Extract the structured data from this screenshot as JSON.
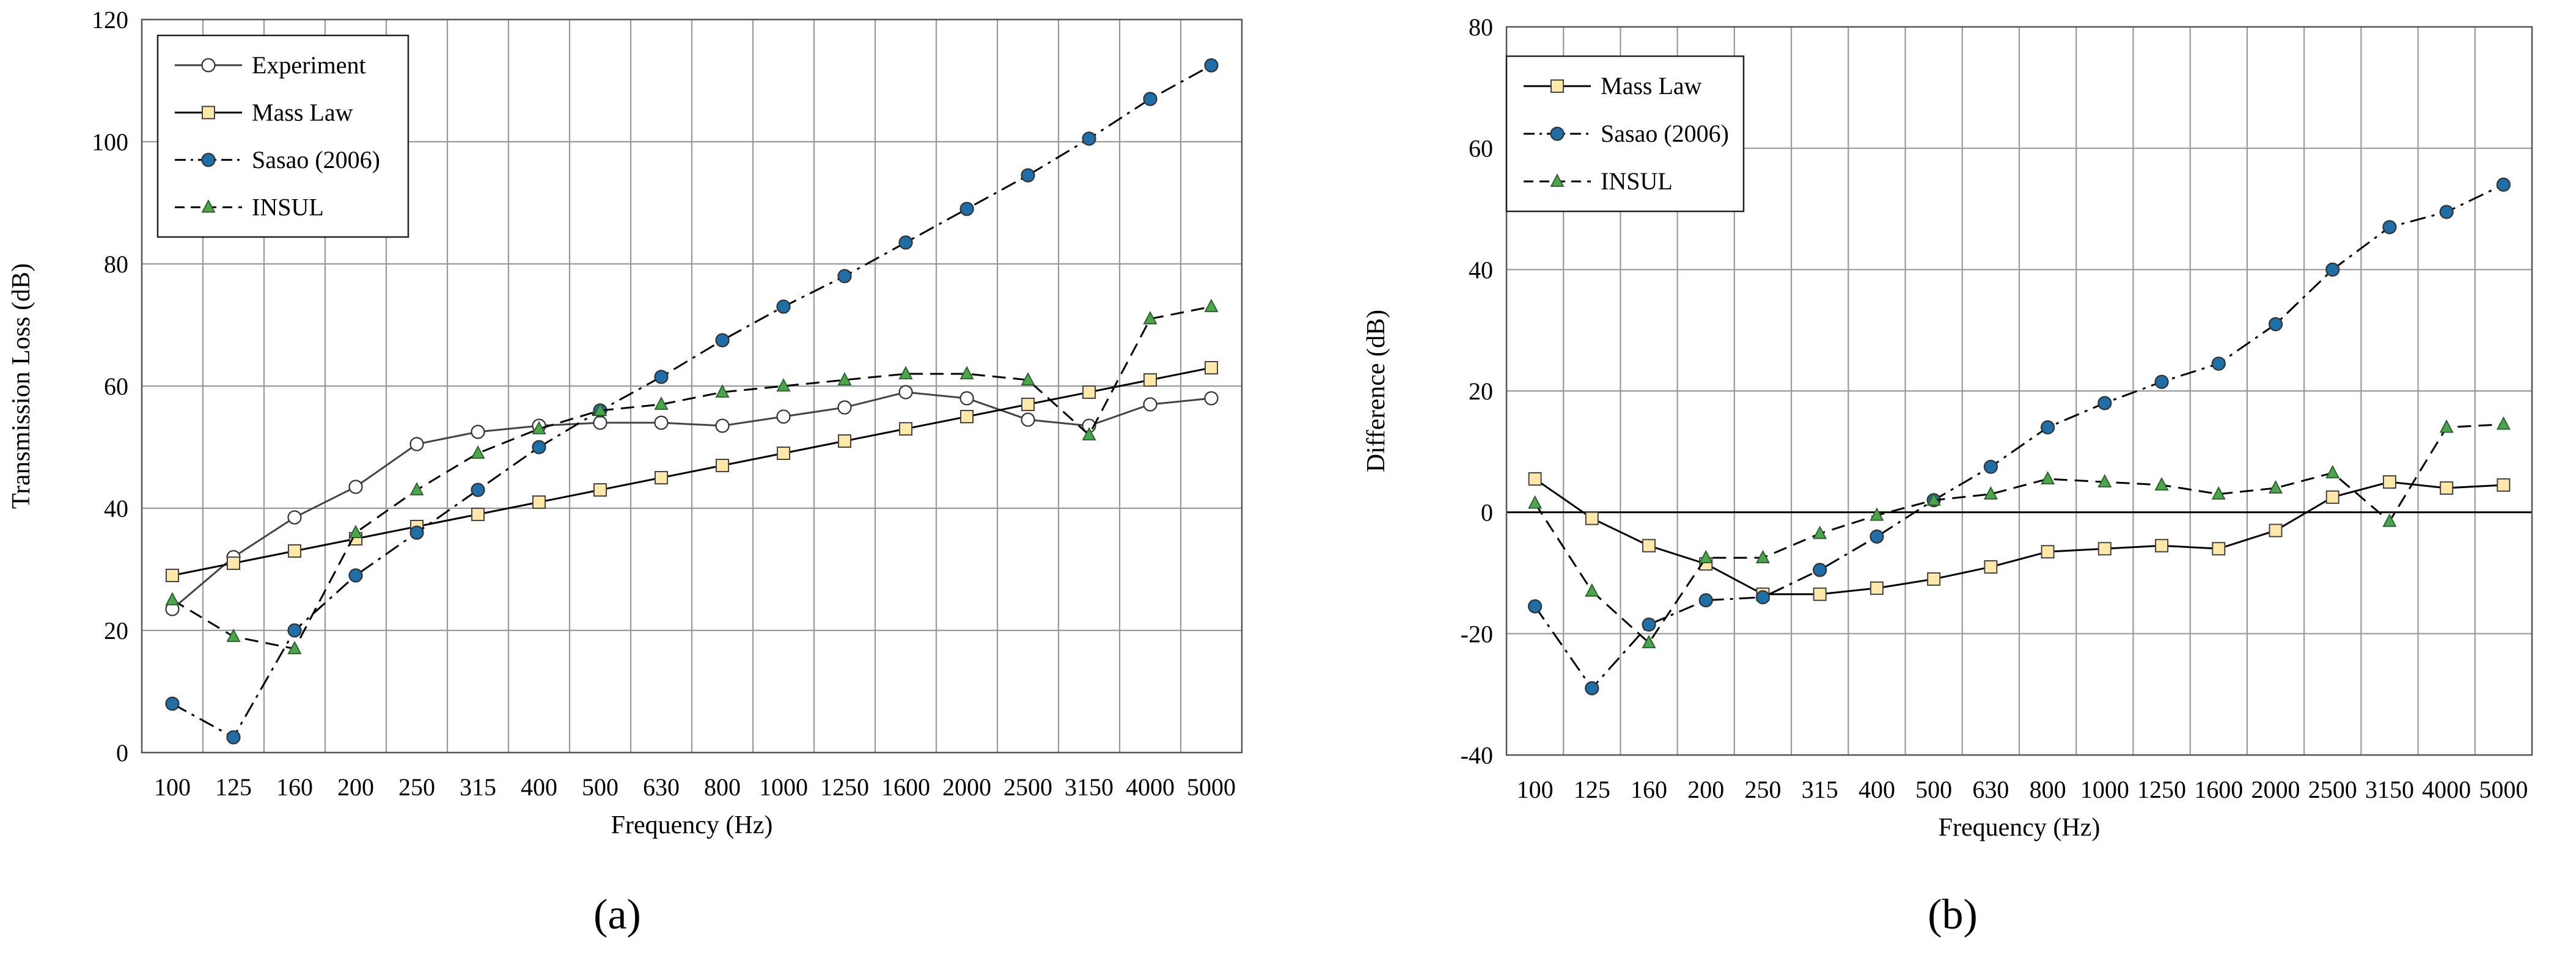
{
  "figure": {
    "panel_a_label": "(a)",
    "panel_b_label": "(b)"
  },
  "chart_data": [
    {
      "type": "line",
      "id": "a",
      "title": "",
      "xlabel": "Frequency (Hz)",
      "ylabel": "Transmission Loss (dB)",
      "ylim": [
        0,
        120
      ],
      "yticks": [
        0,
        20,
        40,
        60,
        80,
        100,
        120
      ],
      "grid": true,
      "legend_position": "top-left",
      "categories": [
        "100",
        "125",
        "160",
        "200",
        "250",
        "315",
        "400",
        "500",
        "630",
        "800",
        "1000",
        "1250",
        "1600",
        "2000",
        "2500",
        "3150",
        "4000",
        "5000"
      ],
      "series": [
        {
          "name": "Experiment",
          "style": "solid",
          "marker": "circle",
          "marker_fill": "#ffffff",
          "line_color": "#444444",
          "values": [
            23.5,
            32,
            38.5,
            43.5,
            50.5,
            52.5,
            53.5,
            54,
            54,
            53.5,
            55,
            56.5,
            59,
            58,
            54.5,
            53.5,
            57,
            58
          ]
        },
        {
          "name": "Mass Law",
          "style": "solid",
          "marker": "square",
          "marker_fill": "#ffe8a8",
          "line_color": "#000000",
          "values": [
            29,
            31,
            33,
            35,
            37,
            39,
            41,
            43,
            45,
            47,
            49,
            51,
            53,
            55,
            57,
            59,
            61,
            63
          ]
        },
        {
          "name": "Sasao (2006)",
          "style": "dashdot",
          "marker": "circle",
          "marker_fill": "#1e6fa8",
          "line_color": "#000000",
          "values": [
            8,
            2.5,
            20,
            29,
            36,
            43,
            50,
            56,
            61.5,
            67.5,
            73,
            78,
            83.5,
            89,
            94.5,
            100.5,
            107,
            112.5
          ]
        },
        {
          "name": "INSUL",
          "style": "dashed",
          "marker": "triangle",
          "marker_fill": "#4aa64a",
          "line_color": "#000000",
          "values": [
            25,
            19,
            17,
            36,
            43,
            49,
            53,
            56,
            57,
            59,
            60,
            61,
            62,
            62,
            61,
            52,
            71,
            73
          ]
        }
      ]
    },
    {
      "type": "line",
      "id": "b",
      "title": "",
      "xlabel": "Frequency (Hz)",
      "ylabel": "Difference (dB)",
      "ylim": [
        -40,
        80
      ],
      "yticks": [
        -40,
        -20,
        0,
        20,
        40,
        60,
        80
      ],
      "grid": true,
      "zero_line": true,
      "legend_position": "top-left",
      "categories": [
        "100",
        "125",
        "160",
        "200",
        "250",
        "315",
        "400",
        "500",
        "630",
        "800",
        "1000",
        "1250",
        "1600",
        "2000",
        "2500",
        "3150",
        "4000",
        "5000"
      ],
      "series": [
        {
          "name": "Mass Law",
          "style": "solid",
          "marker": "square",
          "marker_fill": "#ffe8a8",
          "line_color": "#000000",
          "values": [
            5.5,
            -1,
            -5.5,
            -8.5,
            -13.5,
            -13.5,
            -12.5,
            -11,
            -9,
            -6.5,
            -6,
            -5.5,
            -6,
            -3,
            2.5,
            5,
            4,
            4.5
          ]
        },
        {
          "name": "Sasao (2006)",
          "style": "dashdot",
          "marker": "circle",
          "marker_fill": "#1e6fa8",
          "line_color": "#000000",
          "values": [
            -15.5,
            -29,
            -18.5,
            -14.5,
            -14,
            -9.5,
            -4,
            2,
            7.5,
            14,
            18,
            21.5,
            24.5,
            31,
            40,
            47,
            49.5,
            54
          ]
        },
        {
          "name": "INSUL",
          "style": "dashed",
          "marker": "triangle",
          "marker_fill": "#4aa64a",
          "line_color": "#000000",
          "values": [
            1.5,
            -13,
            -21.5,
            -7.5,
            -7.5,
            -3.5,
            -0.5,
            2,
            3,
            5.5,
            5,
            4.5,
            3,
            4,
            6.5,
            -1.5,
            14,
            14.5
          ]
        }
      ]
    }
  ]
}
